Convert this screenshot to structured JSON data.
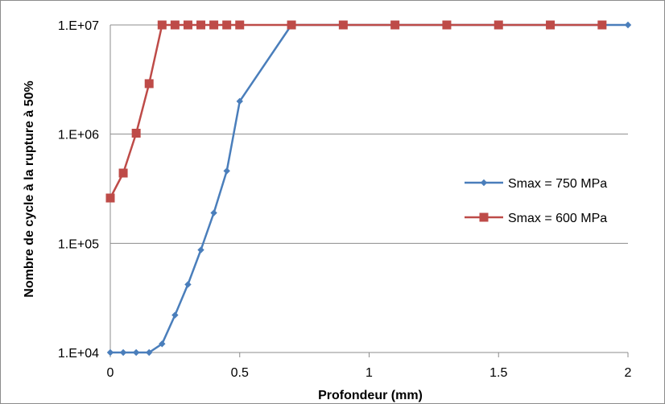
{
  "chart_data": {
    "type": "line",
    "title": "",
    "xlabel": "Profondeur (mm)",
    "ylabel": "Nombre de cycle à la rupture à 50%",
    "xlim": [
      0,
      2
    ],
    "ylim": [
      10000,
      10000000
    ],
    "yscale": "log",
    "x_ticks": [
      "0",
      "0.5",
      "1",
      "1.5",
      "2"
    ],
    "y_ticks": [
      "1.E+04",
      "1.E+05",
      "1.E+06",
      "1.E+07"
    ],
    "grid": "horizontal",
    "legend_position": "right",
    "series": [
      {
        "name": "Smax = 750 MPa",
        "color": "#4a7ebb",
        "marker": "diamond",
        "x": [
          0,
          0.05,
          0.1,
          0.15,
          0.2,
          0.25,
          0.3,
          0.35,
          0.4,
          0.45,
          0.5,
          0.7,
          0.9,
          1.1,
          1.3,
          1.5,
          1.7,
          1.9,
          2.0
        ],
        "y": [
          10000,
          10000,
          10000,
          10000,
          12000,
          22000,
          42000,
          87000,
          190000,
          460000,
          2000000,
          10000000,
          10000000,
          10000000,
          10000000,
          10000000,
          10000000,
          10000000,
          10000000
        ]
      },
      {
        "name": "Smax = 600 MPa",
        "color": "#be4b48",
        "marker": "square",
        "x": [
          0,
          0.05,
          0.1,
          0.15,
          0.2,
          0.25,
          0.3,
          0.35,
          0.4,
          0.45,
          0.5,
          0.7,
          0.9,
          1.1,
          1.3,
          1.5,
          1.7,
          1.9
        ],
        "y": [
          260000,
          440000,
          1020000,
          2900000,
          10000000,
          10000000,
          10000000,
          10000000,
          10000000,
          10000000,
          10000000,
          10000000,
          10000000,
          10000000,
          10000000,
          10000000,
          10000000,
          10000000
        ]
      }
    ]
  }
}
